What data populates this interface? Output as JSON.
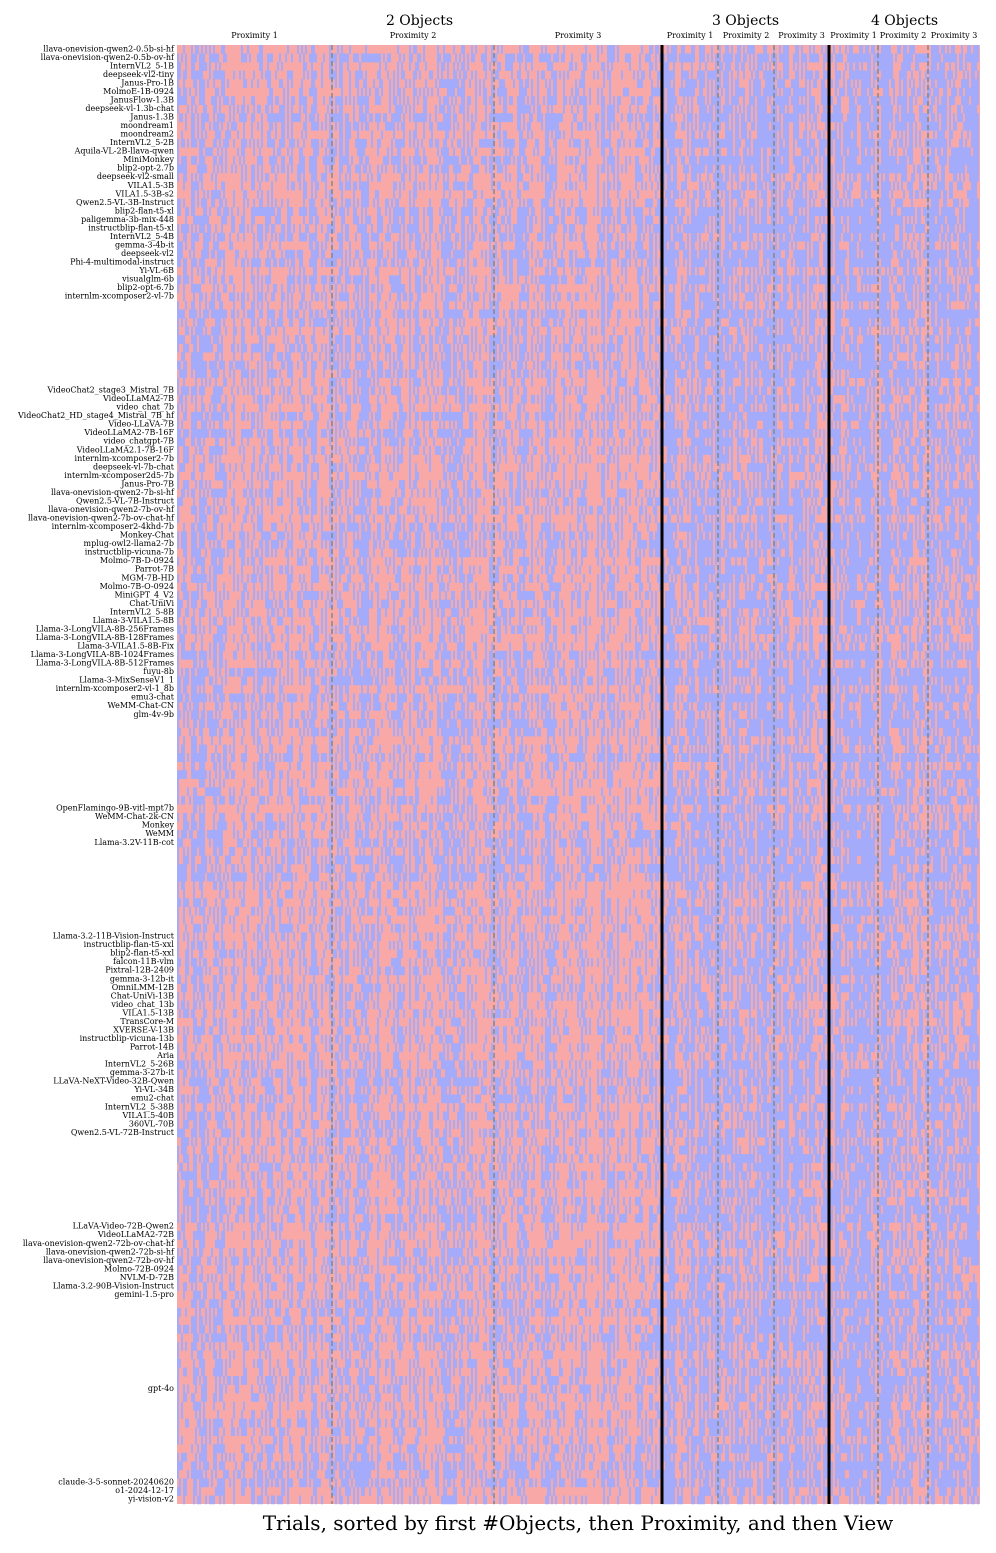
{
  "chart_data": {
    "type": "heatmap",
    "xlabel": "Trials, sorted by first #Objects, then Proximity, and then View",
    "cell_colors": [
      "#f9a8a8",
      "#a3abfa"
    ],
    "column_groups": [
      {
        "label": "2 Objects",
        "subgroups": [
          "Proximity 1",
          "Proximity 2",
          "Proximity 3"
        ]
      },
      {
        "label": "3 Objects",
        "subgroups": [
          "Proximity 1",
          "Proximity 2",
          "Proximity 3"
        ]
      },
      {
        "label": "4 Objects",
        "subgroups": [
          "Proximity 1",
          "Proximity 2",
          "Proximity 3"
        ]
      }
    ],
    "rows": [
      "llava-onevision-qwen2-0.5b-si-hf",
      "llava-onevision-qwen2-0.5b-ov-hf",
      "InternVL2_5-1B",
      "deepseek-vl2-tiny",
      "Janus-Pro-1B",
      "MolmoE-1B-0924",
      "JanusFlow-1.3B",
      "deepseek-vl-1.3b-chat",
      "Janus-1.3B",
      "moondream1",
      "moondream2",
      "InternVL2_5-2B",
      "Aquila-VL-2B-llava-qwen",
      "MiniMonkey",
      "blip2-opt-2.7b",
      "deepseek-vl2-small",
      "VILA1.5-3B",
      "VILA1.5-3B-s2",
      "Qwen2.5-VL-3B-Instruct",
      "blip2-flan-t5-xl",
      "paligemma-3b-mix-448",
      "instructblip-flan-t5-xl",
      "InternVL2_5-4B",
      "gemma-3-4b-it",
      "deepseek-vl2",
      "Phi-4-multimodal-instruct",
      "Yi-VL-6B",
      "visualglm-6b",
      "blip2-opt-6.7b",
      "internlm-xcomposer2-vl-7b",
      null,
      null,
      null,
      null,
      null,
      null,
      null,
      null,
      null,
      null,
      "VideoChat2_stage3_Mistral_7B",
      "VideoLLaMA2-7B",
      "video_chat_7b",
      "VideoChat2_HD_stage4_Mistral_7B_hf",
      "Video-LLaVA-7B",
      "VideoLLaMA2-7B-16F",
      "video_chatgpt-7B",
      "VideoLLaMA2.1-7B-16F",
      "internlm-xcomposer2-7b",
      "deepseek-vl-7b-chat",
      "internlm-xcomposer2d5-7b",
      "Janus-Pro-7B",
      "llava-onevision-qwen2-7b-si-hf",
      "Qwen2.5-VL-7B-Instruct",
      "llava-onevision-qwen2-7b-ov-hf",
      "llava-onevision-qwen2-7b-ov-chat-hf",
      "internlm-xcomposer2-4khd-7b",
      "Monkey-Chat",
      "mplug-owl2-llama2-7b",
      "instructblip-vicuna-7b",
      "Molmo-7B-D-0924",
      "Parrot-7B",
      "MGM-7B-HD",
      "Molmo-7B-O-0924",
      "MiniGPT_4_V2",
      "Chat-UniVi",
      "InternVL2_5-8B",
      "Llama-3-VILA1.5-8B",
      "Llama-3-LongVILA-8B-256Frames",
      "Llama-3-LongVILA-8B-128Frames",
      "Llama-3-VILA1.5-8B-Fix",
      "Llama-3-LongVILA-8B-1024Frames",
      "Llama-3-LongVILA-8B-512Frames",
      "fuyu-8b",
      "Llama-3-MixSenseV1_1",
      "internlm-xcomposer2-vl-1_8b",
      "emu3-chat",
      "WeMM-Chat-CN",
      "glm-4v-9b",
      null,
      null,
      null,
      null,
      null,
      null,
      null,
      null,
      null,
      null,
      "OpenFlamingo-9B-vitl-mpt7b",
      "WeMM-Chat-2k-CN",
      "Monkey",
      "WeMM",
      "Llama-3.2V-11B-cot",
      null,
      null,
      null,
      null,
      null,
      null,
      null,
      null,
      null,
      null,
      "Llama-3.2-11B-Vision-Instruct",
      "instructblip-flan-t5-xxl",
      "blip2-flan-t5-xxl",
      "falcon-11B-vlm",
      "Pixtral-12B-2409",
      "gemma-3-12b-it",
      "OmniLMM-12B",
      "Chat-UniVi-13B",
      "video_chat_13b",
      "VILA1.5-13B",
      "TransCore-M",
      "XVERSE-V-13B",
      "instructblip-vicuna-13b",
      "Parrot-14B",
      "Aria",
      "InternVL2_5-26B",
      "gemma-3-27b-it",
      "LLaVA-NeXT-Video-32B-Qwen",
      "Yi-VL-34B",
      "emu2-chat",
      "InternVL2_5-38B",
      "VILA1.5-40B",
      "360VL-70B",
      "Qwen2.5-VL-72B-Instruct",
      null,
      null,
      null,
      null,
      null,
      null,
      null,
      null,
      null,
      null,
      "LLaVA-Video-72B-Qwen2",
      "VideoLLaMA2-72B",
      "llava-onevision-qwen2-72b-ov-chat-hf",
      "llava-onevision-qwen2-72b-si-hf",
      "llava-onevision-qwen2-72b-ov-hf",
      "Molmo-72B-0924",
      "NVLM-D-72B",
      "Llama-3.2-90B-Vision-Instruct",
      "gemini-1.5-pro",
      null,
      null,
      null,
      null,
      null,
      null,
      null,
      null,
      null,
      null,
      "gpt-4o",
      null,
      null,
      null,
      null,
      null,
      null,
      null,
      null,
      null,
      null,
      "claude-3-5-sonnet-20240620",
      "o1-2024-12-17",
      "yi-vision-v2"
    ]
  }
}
